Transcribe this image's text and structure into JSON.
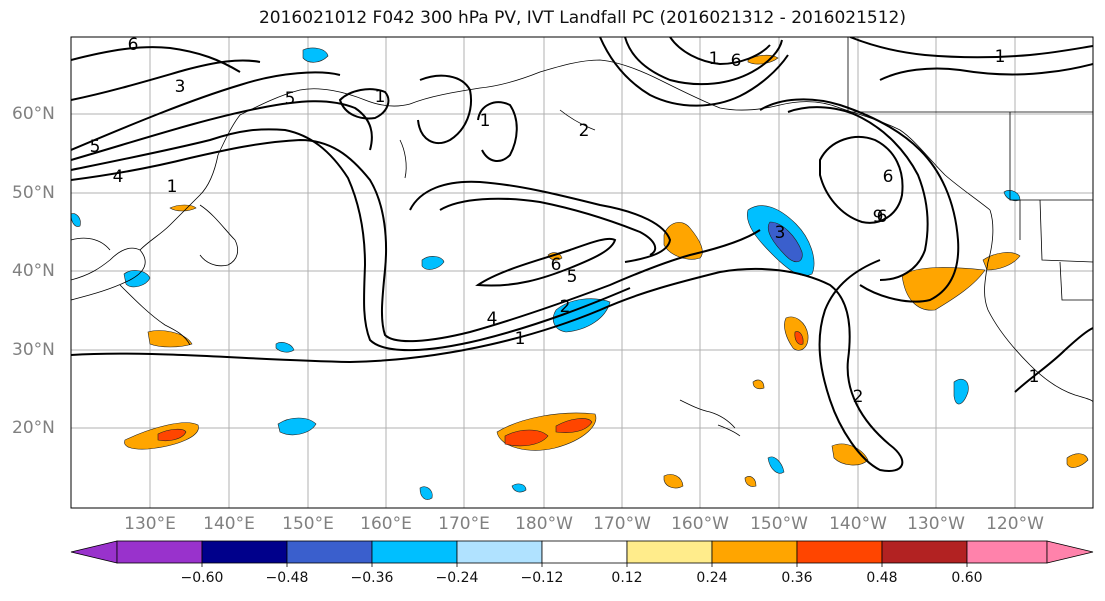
{
  "title": "2016021012 F042 300 hPa PV, IVT Landfall PC (2016021312 - 2016021512)",
  "lat_labels": [
    "60°N",
    "50°N",
    "40°N",
    "30°N",
    "20°N"
  ],
  "lon_labels": [
    "130°E",
    "140°E",
    "150°E",
    "160°E",
    "170°E",
    "180°W",
    "170°W",
    "160°W",
    "150°W",
    "140°W",
    "130°W",
    "120°W"
  ],
  "contour_labels": [
    "6",
    "3",
    "5",
    "5",
    "4",
    "1",
    "1",
    "1",
    "2",
    "6",
    "1",
    "6",
    "1",
    "6",
    "9",
    "3",
    "6",
    "5",
    "2",
    "4",
    "1",
    "2",
    "1"
  ],
  "colorbar": {
    "ticks": [
      "−0.60",
      "−0.48",
      "−0.36",
      "−0.24",
      "−0.12",
      "0.12",
      "0.24",
      "0.36",
      "0.48",
      "0.60"
    ],
    "colors": [
      "#9932cc",
      "#00008b",
      "#3a5fcd",
      "#00bfff",
      "#b0e2ff",
      "#ffffff",
      "#ffec8b",
      "#ffa500",
      "#ff4500",
      "#b22222",
      "#ff82ab"
    ]
  }
}
